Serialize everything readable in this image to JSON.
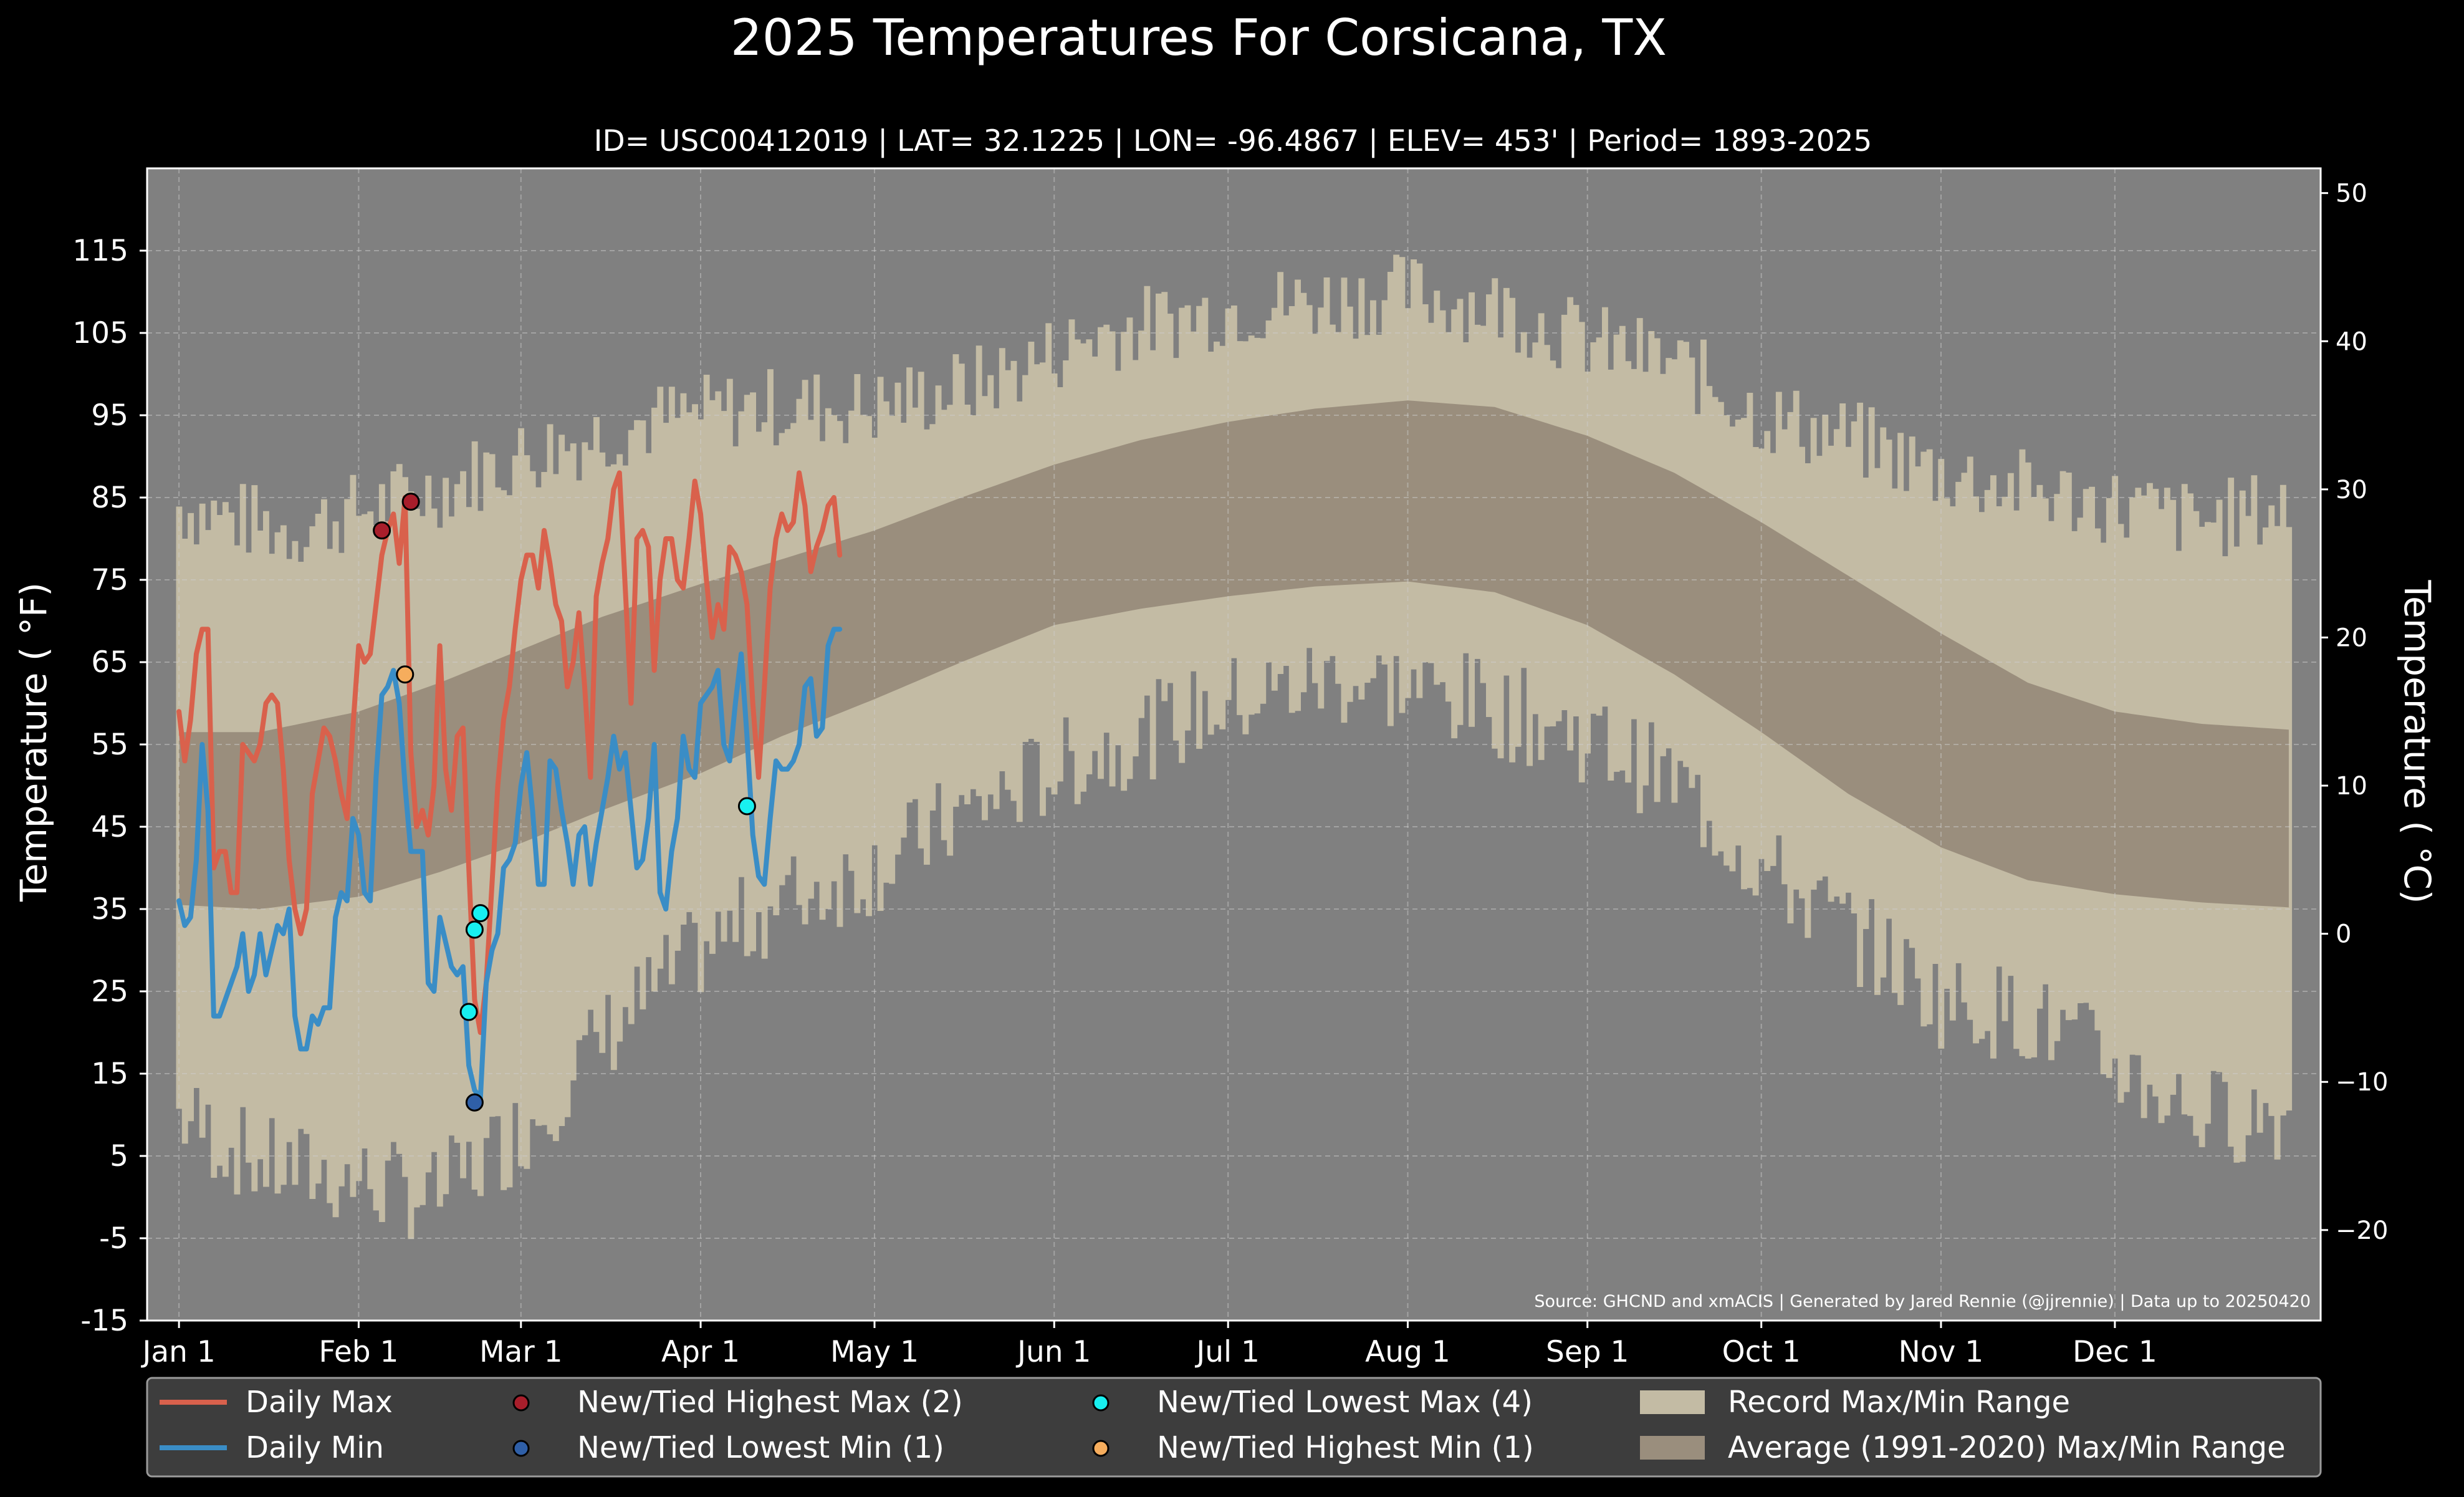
{
  "chart_data": {
    "type": "line",
    "title": "2025 Temperatures For Corsicana, TX",
    "subtitle": "ID= USC00412019 | LAT= 32.1225 | LON= -96.4867 | ELEV= 453' | Period= 1893-2025",
    "ylabel": "Temperature ( °F)",
    "ylabel_right": "Temperature ( °C)",
    "source": "Source: GHCND and xmACIS | Generated by Jared Rennie (@jjrennie) | Data up to 20250420",
    "ylim": [
      -15,
      125
    ],
    "ylim_celsius": [
      -26.11,
      51.67
    ],
    "yticks": [
      -15,
      -5,
      5,
      15,
      25,
      35,
      45,
      55,
      65,
      75,
      85,
      95,
      105,
      115
    ],
    "yticks_celsius": [
      -20,
      -10,
      0,
      10,
      20,
      30,
      40,
      50
    ],
    "xlim_day": [
      1,
      365
    ],
    "month_ticks": [
      {
        "label": "Jan 1",
        "day": 1
      },
      {
        "label": "Feb 1",
        "day": 32
      },
      {
        "label": "Mar 1",
        "day": 60
      },
      {
        "label": "Apr 1",
        "day": 91
      },
      {
        "label": "May 1",
        "day": 121
      },
      {
        "label": "Jun 1",
        "day": 152
      },
      {
        "label": "Jul 1",
        "day": 182
      },
      {
        "label": "Aug 1",
        "day": 213
      },
      {
        "label": "Sep 1",
        "day": 244
      },
      {
        "label": "Oct 1",
        "day": 274
      },
      {
        "label": "Nov 1",
        "day": 305
      },
      {
        "label": "Dec 1",
        "day": 335
      }
    ],
    "grid": true,
    "legend_placement": "bottom",
    "record_max_profile": [
      [
        1,
        84
      ],
      [
        20,
        81
      ],
      [
        45,
        86
      ],
      [
        60,
        90
      ],
      [
        80,
        94
      ],
      [
        100,
        96
      ],
      [
        121,
        96
      ],
      [
        140,
        99
      ],
      [
        160,
        105
      ],
      [
        182,
        108
      ],
      [
        200,
        109
      ],
      [
        213,
        110
      ],
      [
        230,
        108
      ],
      [
        244,
        104
      ],
      [
        260,
        101
      ],
      [
        274,
        95
      ],
      [
        290,
        92
      ],
      [
        305,
        88
      ],
      [
        320,
        86
      ],
      [
        335,
        84
      ],
      [
        350,
        82
      ],
      [
        365,
        84
      ]
    ],
    "record_min_profile": [
      [
        1,
        10
      ],
      [
        15,
        4
      ],
      [
        32,
        2
      ],
      [
        45,
        0
      ],
      [
        60,
        8
      ],
      [
        75,
        20
      ],
      [
        91,
        30
      ],
      [
        105,
        36
      ],
      [
        121,
        40
      ],
      [
        135,
        46
      ],
      [
        152,
        52
      ],
      [
        170,
        57
      ],
      [
        182,
        60
      ],
      [
        200,
        63
      ],
      [
        213,
        62
      ],
      [
        225,
        60
      ],
      [
        244,
        56
      ],
      [
        260,
        50
      ],
      [
        274,
        40
      ],
      [
        290,
        32
      ],
      [
        305,
        24
      ],
      [
        320,
        22
      ],
      [
        335,
        16
      ],
      [
        350,
        10
      ],
      [
        365,
        10
      ]
    ],
    "average_max_profile": [
      [
        1,
        56.5
      ],
      [
        15,
        56.5
      ],
      [
        32,
        59
      ],
      [
        46,
        62.5
      ],
      [
        60,
        66.5
      ],
      [
        74,
        70.5
      ],
      [
        91,
        74.5
      ],
      [
        105,
        77.5
      ],
      [
        121,
        81
      ],
      [
        136,
        85
      ],
      [
        152,
        89
      ],
      [
        167,
        92
      ],
      [
        182,
        94.2
      ],
      [
        197,
        95.8
      ],
      [
        213,
        96.8
      ],
      [
        228,
        96
      ],
      [
        244,
        92.5
      ],
      [
        259,
        88
      ],
      [
        274,
        82
      ],
      [
        289,
        75.5
      ],
      [
        305,
        68.5
      ],
      [
        320,
        62.5
      ],
      [
        335,
        59
      ],
      [
        350,
        57.5
      ],
      [
        365,
        56.8
      ]
    ],
    "average_min_profile": [
      [
        1,
        35.5
      ],
      [
        15,
        35
      ],
      [
        32,
        36.5
      ],
      [
        46,
        39.5
      ],
      [
        60,
        43
      ],
      [
        74,
        47
      ],
      [
        91,
        51.5
      ],
      [
        105,
        56
      ],
      [
        121,
        60.5
      ],
      [
        136,
        65
      ],
      [
        152,
        69.5
      ],
      [
        167,
        71.5
      ],
      [
        182,
        73
      ],
      [
        197,
        74.2
      ],
      [
        213,
        74.8
      ],
      [
        228,
        73.5
      ],
      [
        244,
        69.5
      ],
      [
        259,
        63.5
      ],
      [
        274,
        56.5
      ],
      [
        289,
        49
      ],
      [
        305,
        42.5
      ],
      [
        320,
        38.5
      ],
      [
        335,
        36.8
      ],
      [
        350,
        35.8
      ],
      [
        365,
        35.2
      ]
    ],
    "series": [
      {
        "name": "Daily Max",
        "color": "#d9614c",
        "start_day": 1,
        "values": [
          59,
          53,
          58,
          66,
          69,
          69,
          40,
          42,
          42,
          37,
          37,
          55,
          54,
          53,
          55,
          60,
          61,
          60,
          52,
          41,
          35,
          32,
          35,
          49,
          53,
          57,
          56,
          53,
          49,
          46,
          57,
          67,
          65,
          66,
          72,
          78,
          81,
          83,
          77,
          85,
          54,
          45,
          47,
          44,
          50,
          67,
          52,
          47,
          56,
          57,
          40,
          24,
          20,
          26,
          38,
          50,
          58,
          62,
          69,
          75,
          78,
          78,
          74,
          81,
          77,
          72,
          70,
          62,
          65,
          71,
          62,
          51,
          73,
          77,
          80,
          86,
          88,
          74,
          60,
          80,
          81,
          79,
          64,
          75,
          80,
          80,
          75,
          74,
          80,
          87,
          83,
          75,
          68,
          72,
          69,
          79,
          78,
          76,
          72,
          60,
          51,
          62,
          74,
          80,
          83,
          81,
          82,
          88,
          84,
          76,
          79,
          81,
          84,
          85,
          78
        ]
      },
      {
        "name": "Daily Min",
        "color": "#3a8dc6",
        "start_day": 1,
        "values": [
          36,
          33,
          34,
          41,
          55,
          47,
          22,
          22,
          24,
          26,
          28,
          32,
          25,
          27,
          32,
          27,
          30,
          33,
          32,
          35,
          22,
          18,
          18,
          22,
          21,
          23,
          23,
          34,
          37,
          36,
          46,
          44,
          37,
          36,
          51,
          61,
          62,
          64,
          60,
          50,
          42,
          42,
          42,
          26,
          25,
          34,
          31,
          28,
          27,
          28,
          16,
          13,
          12,
          26,
          30,
          32,
          40,
          41,
          43,
          50,
          54,
          47,
          38,
          38,
          53,
          52,
          47,
          43,
          38,
          44,
          45,
          38,
          43,
          47,
          51,
          56,
          52,
          54,
          47,
          40,
          41,
          46,
          55,
          37,
          35,
          42,
          46,
          56,
          52,
          51,
          60,
          61,
          62,
          64,
          55,
          53,
          60,
          66,
          56,
          44,
          39,
          38,
          46,
          53,
          52,
          52,
          53,
          55,
          62,
          63,
          56,
          57,
          67,
          69,
          69
        ]
      }
    ],
    "record_points": [
      {
        "name": "New/Tied Highest Max (2)",
        "color": "#a81e2b",
        "points": [
          [
            36,
            81
          ],
          [
            41,
            84.5
          ]
        ]
      },
      {
        "name": "New/Tied Lowest Min (1)",
        "color": "#2f5fa7",
        "points": [
          [
            52,
            11.5
          ]
        ]
      },
      {
        "name": "New/Tied Lowest Max (4)",
        "color": "#18f0f0",
        "points": [
          [
            51,
            22.5
          ],
          [
            52,
            32.5
          ],
          [
            53,
            34.5
          ],
          [
            99,
            47.5
          ]
        ]
      },
      {
        "name": "New/Tied Highest Min (1)",
        "color": "#f6ad5d",
        "points": [
          [
            40,
            63.5
          ]
        ]
      }
    ],
    "ranges": [
      {
        "name": "Record Max/Min Range",
        "color": "#c3bba4"
      },
      {
        "name": "Average (1991-2020) Max/Min Range",
        "color": "#9a8e7d"
      }
    ],
    "background_color": "#808080"
  }
}
